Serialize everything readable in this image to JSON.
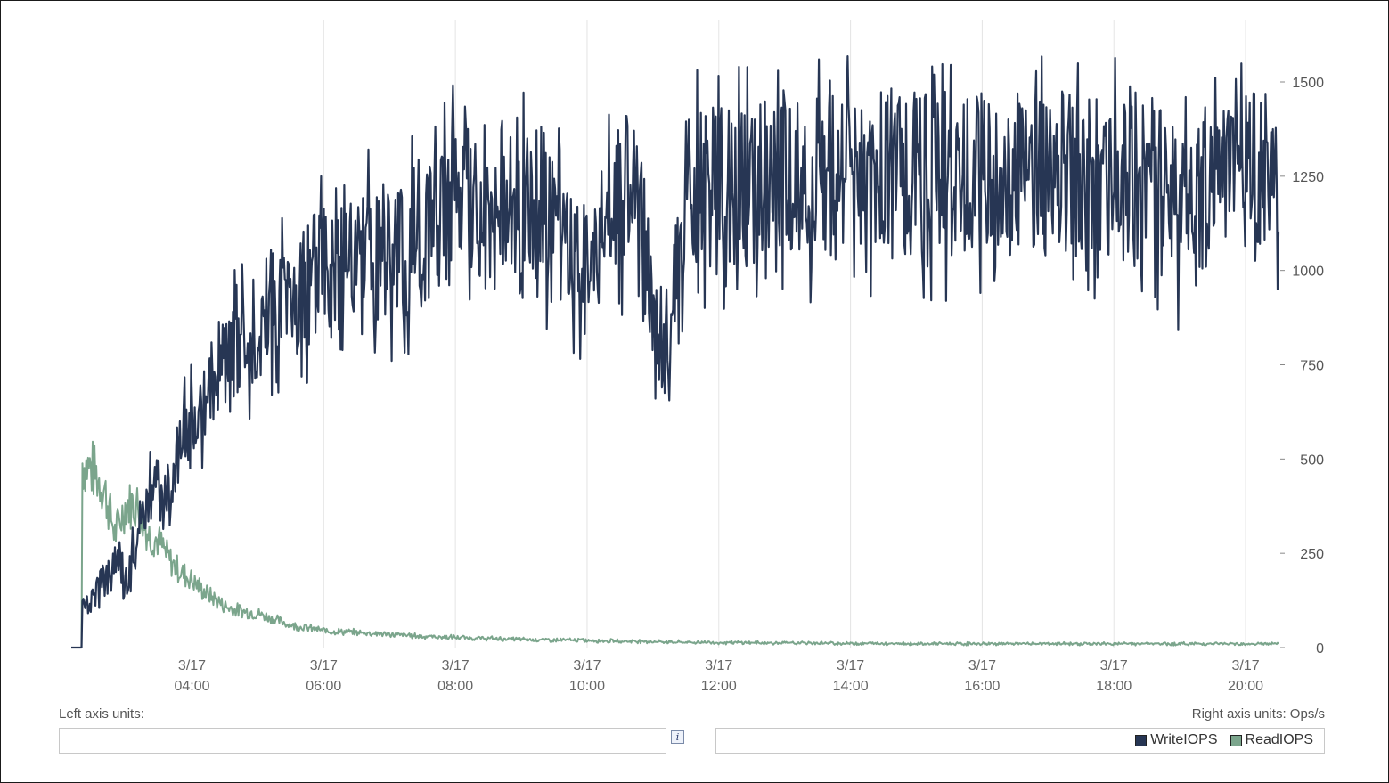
{
  "units": {
    "left_label": "Left axis units:",
    "right_label": "Right axis units: Ops/s",
    "info_glyph": "i"
  },
  "legend": [
    {
      "label": "WriteIOPS",
      "color": "#273654"
    },
    {
      "label": "ReadIOPS",
      "color": "#7ba58c"
    }
  ],
  "chart_data": {
    "type": "line",
    "x_ticks": [
      {
        "date": "3/17",
        "time": "04:00"
      },
      {
        "date": "3/17",
        "time": "06:00"
      },
      {
        "date": "3/17",
        "time": "08:00"
      },
      {
        "date": "3/17",
        "time": "10:00"
      },
      {
        "date": "3/17",
        "time": "12:00"
      },
      {
        "date": "3/17",
        "time": "14:00"
      },
      {
        "date": "3/17",
        "time": "16:00"
      },
      {
        "date": "3/17",
        "time": "18:00"
      },
      {
        "date": "3/17",
        "time": "20:00"
      }
    ],
    "xlim": [
      "02:10",
      "20:30"
    ],
    "y_ticks": [
      "1500",
      "1250",
      "1000",
      "750",
      "500",
      "250",
      "0"
    ],
    "ylim": [
      0,
      1500
    ],
    "y_axis_side": "right",
    "grid": "vertical",
    "legend_position": "bottom-right",
    "series": [
      {
        "name": "WriteIOPS",
        "color": "#273654",
        "x": [
          "02:10",
          "02:20",
          "02:30",
          "02:40",
          "02:50",
          "03:00",
          "03:10",
          "03:20",
          "03:30",
          "03:40",
          "03:50",
          "04:00",
          "04:10",
          "04:20",
          "04:30",
          "04:40",
          "04:50",
          "05:00",
          "05:10",
          "05:20",
          "05:30",
          "05:40",
          "05:50",
          "06:00",
          "06:15",
          "06:30",
          "06:45",
          "07:00",
          "07:15",
          "07:30",
          "07:45",
          "08:00",
          "08:15",
          "08:30",
          "08:45",
          "09:00",
          "09:15",
          "09:30",
          "09:45",
          "10:00",
          "10:15",
          "10:30",
          "10:45",
          "11:00",
          "11:10",
          "11:20",
          "11:30",
          "11:40",
          "11:50",
          "12:00",
          "12:15",
          "12:30",
          "12:45",
          "13:00",
          "13:15",
          "13:30",
          "13:45",
          "14:00",
          "14:15",
          "14:30",
          "14:45",
          "15:00",
          "15:15",
          "15:30",
          "15:45",
          "16:00",
          "16:15",
          "16:30",
          "16:45",
          "17:00",
          "17:15",
          "17:30",
          "17:45",
          "18:00",
          "18:15",
          "18:30",
          "18:45",
          "19:00",
          "19:15",
          "19:30",
          "19:45",
          "20:00",
          "20:15",
          "20:30"
        ],
        "values": [
          0,
          100,
          120,
          170,
          230,
          180,
          290,
          400,
          450,
          380,
          560,
          600,
          650,
          700,
          780,
          800,
          830,
          850,
          900,
          920,
          930,
          960,
          980,
          1000,
          990,
          1020,
          1050,
          1040,
          1080,
          1080,
          1150,
          1180,
          1170,
          1160,
          1170,
          1200,
          1180,
          1150,
          1080,
          1000,
          1200,
          1210,
          1240,
          850,
          800,
          950,
          1230,
          1230,
          1210,
          1220,
          1220,
          1230,
          1240,
          1260,
          1270,
          1250,
          1240,
          1260,
          1240,
          1260,
          1260,
          1250,
          1240,
          1250,
          1240,
          1280,
          1260,
          1250,
          1250,
          1240,
          1240,
          1250,
          1240,
          1250,
          1230,
          1220,
          1200,
          1150,
          1220,
          1230,
          1250,
          1250,
          1260,
          1200
        ]
      },
      {
        "name": "ReadIOPS",
        "color": "#7ba58c",
        "x": [
          "02:10",
          "02:20",
          "02:30",
          "02:40",
          "02:50",
          "03:00",
          "03:10",
          "03:20",
          "03:30",
          "03:40",
          "03:50",
          "04:00",
          "04:10",
          "04:20",
          "04:30",
          "04:40",
          "04:50",
          "05:00",
          "05:10",
          "05:20",
          "05:30",
          "05:40",
          "05:50",
          "06:00",
          "06:15",
          "06:30",
          "06:45",
          "07:00",
          "07:15",
          "07:30",
          "07:45",
          "08:00",
          "08:15",
          "08:30",
          "08:45",
          "09:00",
          "09:15",
          "09:30",
          "09:45",
          "10:00",
          "10:15",
          "10:30",
          "10:45",
          "11:00",
          "11:10",
          "11:20",
          "11:30",
          "11:40",
          "11:50",
          "12:00",
          "12:15",
          "12:30",
          "12:45",
          "13:00",
          "13:15",
          "13:30",
          "13:45",
          "14:00",
          "14:15",
          "14:30",
          "14:45",
          "15:00",
          "15:15",
          "15:30",
          "15:45",
          "16:00",
          "16:15",
          "16:30",
          "16:45",
          "17:00",
          "17:15",
          "17:30",
          "17:45",
          "18:00",
          "18:15",
          "18:30",
          "18:45",
          "19:00",
          "19:15",
          "19:30",
          "19:45",
          "20:00",
          "20:15",
          "20:30"
        ],
        "values": [
          0,
          490,
          470,
          420,
          300,
          380,
          380,
          300,
          280,
          230,
          200,
          180,
          150,
          130,
          110,
          100,
          95,
          90,
          80,
          70,
          60,
          55,
          50,
          45,
          42,
          40,
          38,
          35,
          33,
          30,
          28,
          27,
          25,
          24,
          23,
          22,
          21,
          20,
          20,
          19,
          18,
          17,
          17,
          16,
          15,
          15,
          14,
          14,
          14,
          13,
          13,
          13,
          12,
          12,
          12,
          12,
          11,
          11,
          11,
          11,
          11,
          10,
          10,
          10,
          10,
          10,
          10,
          10,
          10,
          10,
          10,
          10,
          10,
          10,
          10,
          10,
          10,
          10,
          10,
          10,
          10,
          10,
          10,
          10
        ]
      }
    ]
  }
}
